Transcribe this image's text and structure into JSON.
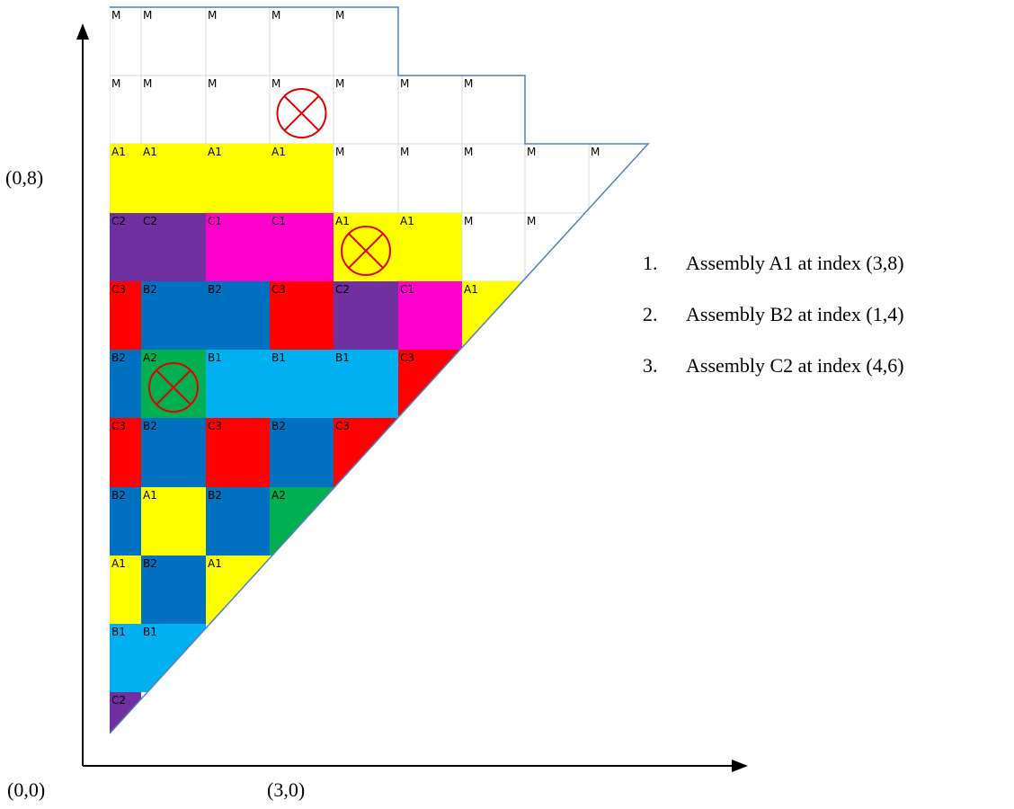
{
  "axis_labels": {
    "origin": "(0,0)",
    "x_mark": "(3,0)",
    "y_mark": "(0,8)"
  },
  "colors": {
    "A1": "#ffff00",
    "A2": "#00b050",
    "B1": "#00b0f0",
    "B2": "#0070c0",
    "C1": "#ff00cc",
    "C2": "#7030a0",
    "C3": "#ff0000",
    "M": "#ffffff",
    "grid": "#d9d9d9",
    "outline": "#4f81bd",
    "marker": "#e00000"
  },
  "rows": [
    [
      "M",
      "M",
      "M",
      "M",
      "M"
    ],
    [
      "M",
      "M",
      "M",
      "M",
      "M",
      "M",
      "M"
    ],
    [
      "A1",
      "A1",
      "A1",
      "A1",
      "M",
      "M",
      "M",
      "M",
      "M"
    ],
    [
      "C2",
      "C2",
      "C1",
      "C1",
      "A1",
      "A1",
      "M",
      "M"
    ],
    [
      "C3",
      "B2",
      "B2",
      "C3",
      "C2",
      "C1",
      "A1"
    ],
    [
      "B2",
      "A2",
      "B1",
      "B1",
      "B1",
      "C3"
    ],
    [
      "C3",
      "B2",
      "C3",
      "B2",
      "C3"
    ],
    [
      "B2",
      "A1",
      "B2",
      "A2"
    ],
    [
      "A1",
      "B2",
      "A1"
    ],
    [
      "B1",
      "B1"
    ],
    [
      "C2"
    ]
  ],
  "marked_cells": [
    {
      "label": "A1",
      "position": [
        3,
        8
      ]
    },
    {
      "label": "B2",
      "position": [
        1,
        4
      ]
    },
    {
      "label": "C2",
      "position": [
        4,
        6
      ]
    }
  ],
  "notes": [
    {
      "num": "1.",
      "text": "Assembly A1 at index (3,8)"
    },
    {
      "num": "2.",
      "text": "Assembly B2 at index (1,4)"
    },
    {
      "num": "3.",
      "text": "Assembly C2 at index (4,6)"
    }
  ]
}
